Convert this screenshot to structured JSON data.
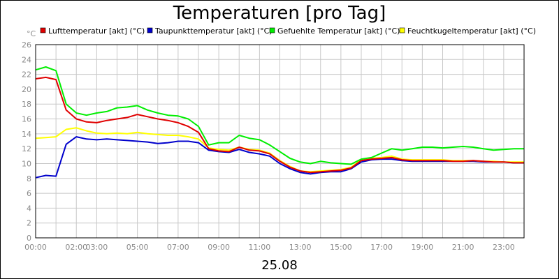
{
  "chart_data": {
    "type": "line",
    "title": "Temperaturen [pro Tag]",
    "yunit": "°C",
    "xlabel": "25.08",
    "ylim": [
      0,
      26
    ],
    "ytick_step": 2,
    "xlim": [
      0,
      24
    ],
    "x_ticks": [
      {
        "x": 0,
        "label": "00:00"
      },
      {
        "x": 2,
        "label": "02:00"
      },
      {
        "x": 3,
        "label": "03:00"
      },
      {
        "x": 5,
        "label": "05:00"
      },
      {
        "x": 7,
        "label": "07:00"
      },
      {
        "x": 9,
        "label": "09:00"
      },
      {
        "x": 11,
        "label": "11:00"
      },
      {
        "x": 13,
        "label": "13:00"
      },
      {
        "x": 15,
        "label": "15:00"
      },
      {
        "x": 17,
        "label": "17:00"
      },
      {
        "x": 19,
        "label": "19:00"
      },
      {
        "x": 21,
        "label": "21:00"
      },
      {
        "x": 23,
        "label": "23:00"
      }
    ],
    "grid": true,
    "legend_position": "top",
    "x": [
      0,
      0.5,
      1,
      1.5,
      2,
      2.5,
      3,
      3.5,
      4,
      4.5,
      5,
      5.5,
      6,
      6.5,
      7,
      7.5,
      8,
      8.5,
      9,
      9.5,
      10,
      10.5,
      11,
      11.5,
      12,
      12.5,
      13,
      13.5,
      14,
      14.5,
      15,
      15.5,
      16,
      16.5,
      17,
      17.5,
      18,
      18.5,
      19,
      19.5,
      20,
      20.5,
      21,
      21.5,
      22,
      22.5,
      23,
      23.5,
      24
    ],
    "series": [
      {
        "name": "Lufttemperatur [akt] (°C)",
        "color": "#e00000",
        "values": [
          21.4,
          21.6,
          21.3,
          17.2,
          16.0,
          15.6,
          15.5,
          15.8,
          16.0,
          16.2,
          16.6,
          16.3,
          16.0,
          15.8,
          15.5,
          15.0,
          14.2,
          12.0,
          11.7,
          11.6,
          12.2,
          11.8,
          11.7,
          11.3,
          10.3,
          9.5,
          9.0,
          8.8,
          8.9,
          9.0,
          9.1,
          9.4,
          10.4,
          10.6,
          10.7,
          10.8,
          10.5,
          10.4,
          10.4,
          10.4,
          10.4,
          10.3,
          10.3,
          10.4,
          10.3,
          10.2,
          10.2,
          10.1,
          10.1
        ]
      },
      {
        "name": "Taupunkttemperatur [akt] (°C)",
        "color": "#0000cc",
        "values": [
          8.1,
          8.4,
          8.3,
          12.6,
          13.6,
          13.3,
          13.2,
          13.3,
          13.2,
          13.1,
          13.0,
          12.9,
          12.7,
          12.8,
          13.0,
          13.0,
          12.8,
          11.8,
          11.6,
          11.5,
          11.9,
          11.5,
          11.3,
          11.0,
          10.0,
          9.3,
          8.8,
          8.6,
          8.8,
          8.9,
          8.9,
          9.3,
          10.2,
          10.5,
          10.6,
          10.6,
          10.4,
          10.3,
          10.3,
          10.3,
          10.3,
          10.3,
          10.3,
          10.3,
          10.2,
          10.2,
          10.2,
          10.1,
          10.1
        ]
      },
      {
        "name": "Gefuehlte Temperatur [akt] (°C)",
        "color": "#00ee00",
        "values": [
          22.6,
          23.0,
          22.5,
          18.0,
          16.8,
          16.5,
          16.8,
          17.0,
          17.5,
          17.6,
          17.8,
          17.2,
          16.8,
          16.5,
          16.4,
          16.0,
          15.0,
          12.5,
          12.8,
          12.8,
          13.8,
          13.4,
          13.2,
          12.5,
          11.6,
          10.7,
          10.2,
          10.0,
          10.3,
          10.1,
          10.0,
          9.9,
          10.6,
          10.8,
          11.4,
          12.0,
          11.8,
          12.0,
          12.2,
          12.2,
          12.1,
          12.2,
          12.3,
          12.2,
          12.0,
          11.8,
          11.9,
          12.0,
          12.0
        ]
      },
      {
        "name": "Feuchtkugeltemperatur [akt] (°C)",
        "color": "#ffff00",
        "values": [
          13.4,
          13.5,
          13.6,
          14.6,
          14.8,
          14.4,
          14.1,
          14.0,
          14.1,
          14.0,
          14.2,
          14.0,
          13.9,
          13.8,
          13.8,
          13.6,
          13.3,
          12.1,
          11.9,
          11.8,
          12.2,
          11.9,
          11.8,
          11.4,
          10.4,
          9.6,
          9.0,
          8.9,
          9.0,
          9.1,
          9.2,
          9.5,
          10.5,
          10.7,
          10.8,
          11.0,
          10.6,
          10.5,
          10.5,
          10.5,
          10.5,
          10.4,
          10.4,
          10.4,
          10.3,
          10.3,
          10.2,
          10.2,
          10.2
        ]
      }
    ]
  }
}
